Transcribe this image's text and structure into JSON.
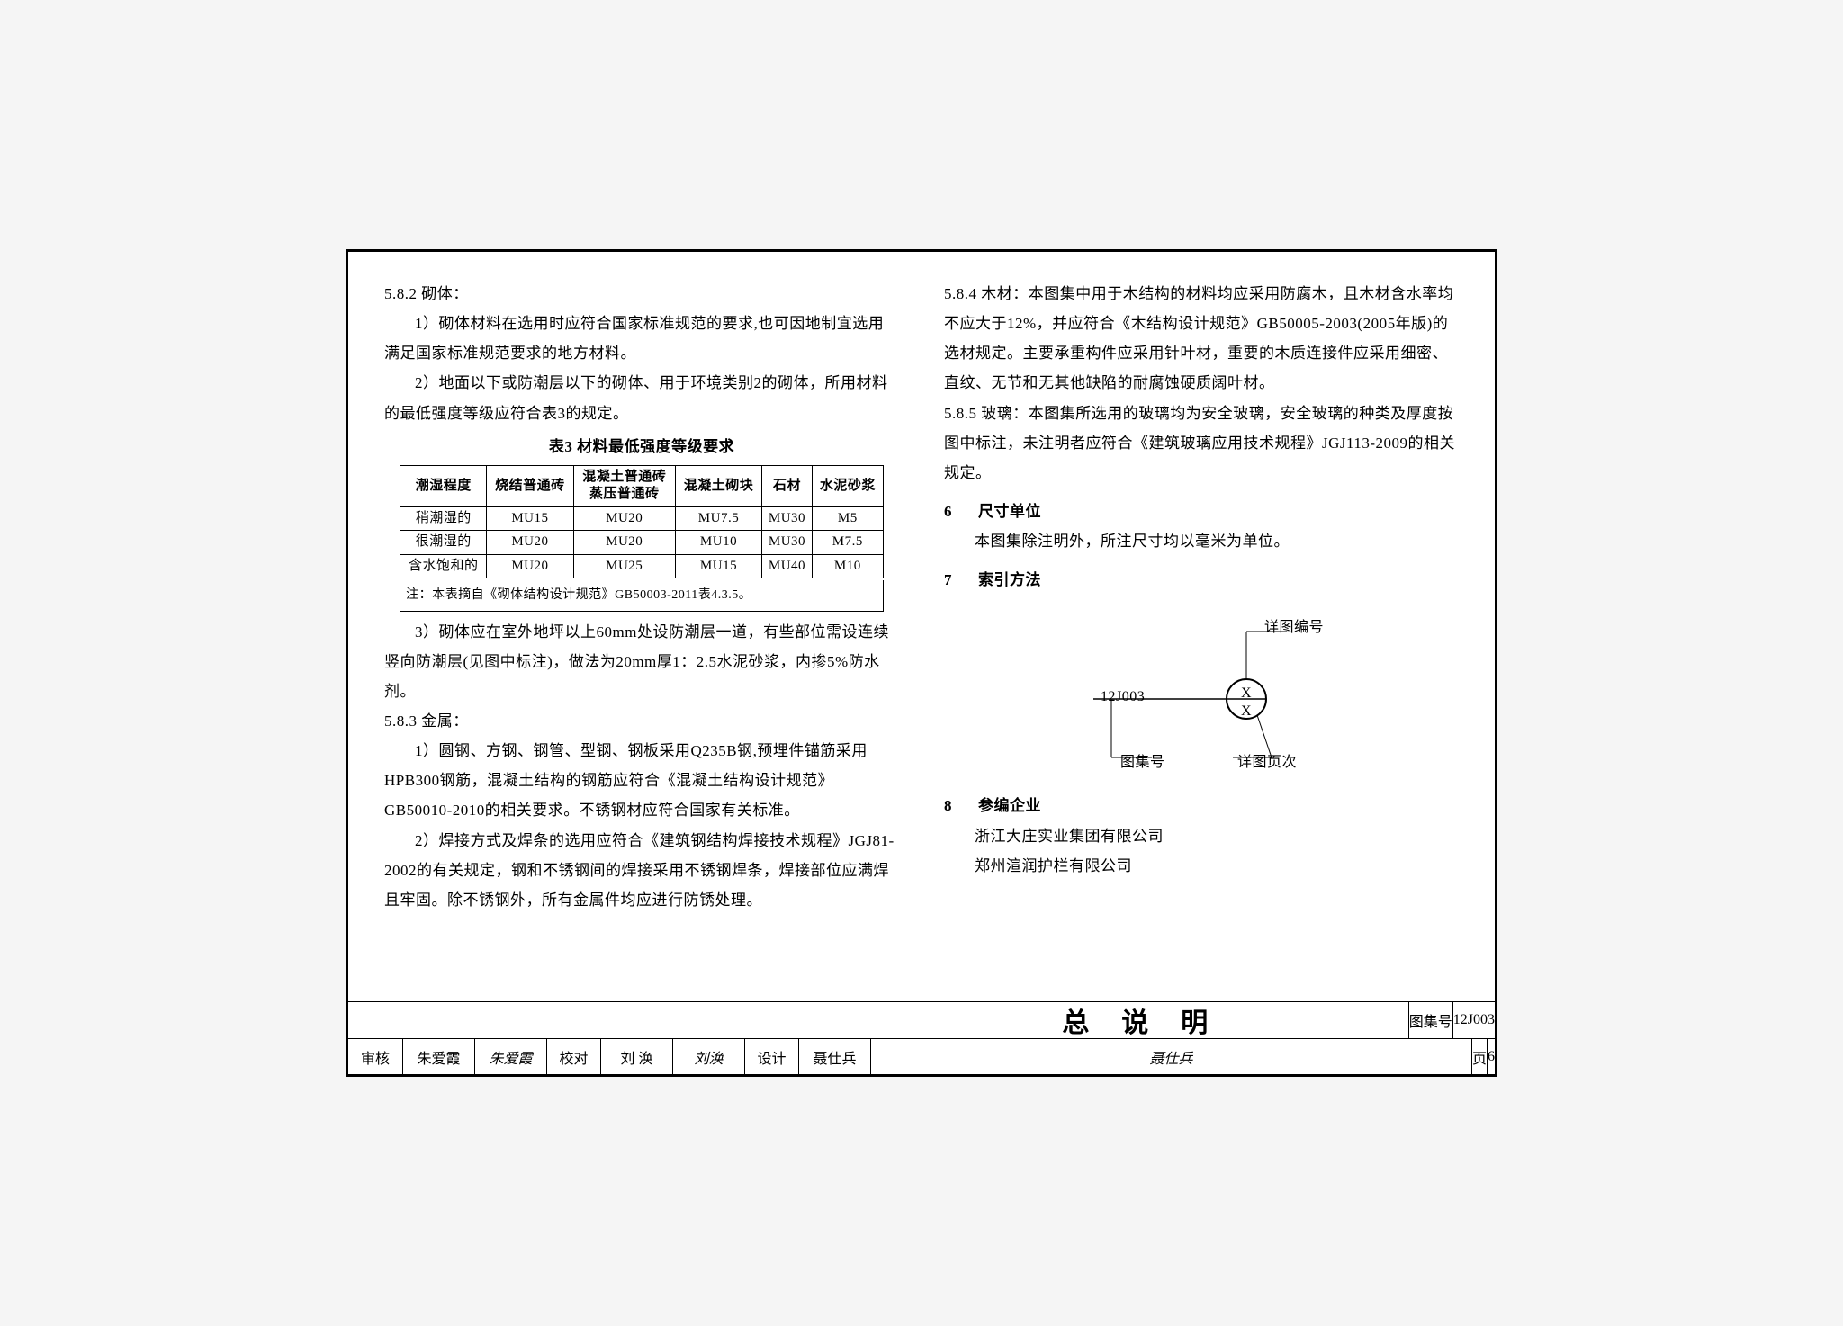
{
  "left": {
    "p582_head": "5.8.2 砌体：",
    "p582_1": "1）砌体材料在选用时应符合国家标准规范的要求,也可因地制宜选用满足国家标准规范要求的地方材料。",
    "p582_2": "2）地面以下或防潮层以下的砌体、用于环境类别2的砌体，所用材料的最低强度等级应符合表3的规定。",
    "table3_title": "表3  材料最低强度等级要求",
    "table3": {
      "headers": [
        "潮湿程度",
        "烧结普通砖",
        "混凝土普通砖\n蒸压普通砖",
        "混凝土砌块",
        "石材",
        "水泥砂浆"
      ],
      "rows": [
        [
          "稍潮湿的",
          "MU15",
          "MU20",
          "MU7.5",
          "MU30",
          "M5"
        ],
        [
          "很潮湿的",
          "MU20",
          "MU20",
          "MU10",
          "MU30",
          "M7.5"
        ],
        [
          "含水饱和的",
          "MU20",
          "MU25",
          "MU15",
          "MU40",
          "M10"
        ]
      ],
      "note": "注：本表摘自《砌体结构设计规范》GB50003-2011表4.3.5。"
    },
    "p582_3": "3）砌体应在室外地坪以上60mm处设防潮层一道，有些部位需设连续竖向防潮层(见图中标注)，做法为20mm厚1：2.5水泥砂浆，内掺5%防水剂。",
    "p583_head": "5.8.3 金属：",
    "p583_1": "1）圆钢、方钢、钢管、型钢、钢板采用Q235B钢,预埋件锚筋采用HPB300钢筋，混凝土结构的钢筋应符合《混凝土结构设计规范》GB50010-2010的相关要求。不锈钢材应符合国家有关标准。",
    "p583_2": "2）焊接方式及焊条的选用应符合《建筑钢结构焊接技术规程》JGJ81-2002的有关规定，钢和不锈钢间的焊接采用不锈钢焊条，焊接部位应满焊且牢固。除不锈钢外，所有金属件均应进行防锈处理。"
  },
  "right": {
    "p584": "5.8.4 木材：本图集中用于木结构的材料均应采用防腐木，且木材含水率均不应大于12%，并应符合《木结构设计规范》GB50005-2003(2005年版)的选材规定。主要承重构件应采用针叶材，重要的木质连接件应采用细密、直纹、无节和无其他缺陷的耐腐蚀硬质阔叶材。",
    "p585": "5.8.5 玻璃：本图集所选用的玻璃均为安全玻璃，安全玻璃的种类及厚度按图中标注，未注明者应符合《建筑玻璃应用技术规程》JGJ113-2009的相关规定。",
    "s6_num": "6",
    "s6_title": "尺寸单位",
    "s6_body": "本图集除注明外，所注尺寸均以毫米为单位。",
    "s7_num": "7",
    "s7_title": "索引方法",
    "diagram": {
      "atlas_code": "12J003",
      "x_top": "X",
      "x_bot": "X",
      "lbl_detail_no": "详图编号",
      "lbl_atlas": "图集号",
      "lbl_detail_page": "详图页次"
    },
    "s8_num": "8",
    "s8_title": "参编企业",
    "s8_c1": "浙江大庄实业集团有限公司",
    "s8_c2": "郑州渲润护栏有限公司"
  },
  "titleblock": {
    "main_title": "总说明",
    "atlas_lbl": "图集号",
    "atlas_val": "12J003",
    "review_lbl": "审核",
    "review_name": "朱爱霞",
    "check_lbl": "校对",
    "check_name": "刘 涣",
    "design_lbl": "设计",
    "design_name": "聂仕兵",
    "page_lbl": "页",
    "page_val": "6"
  }
}
